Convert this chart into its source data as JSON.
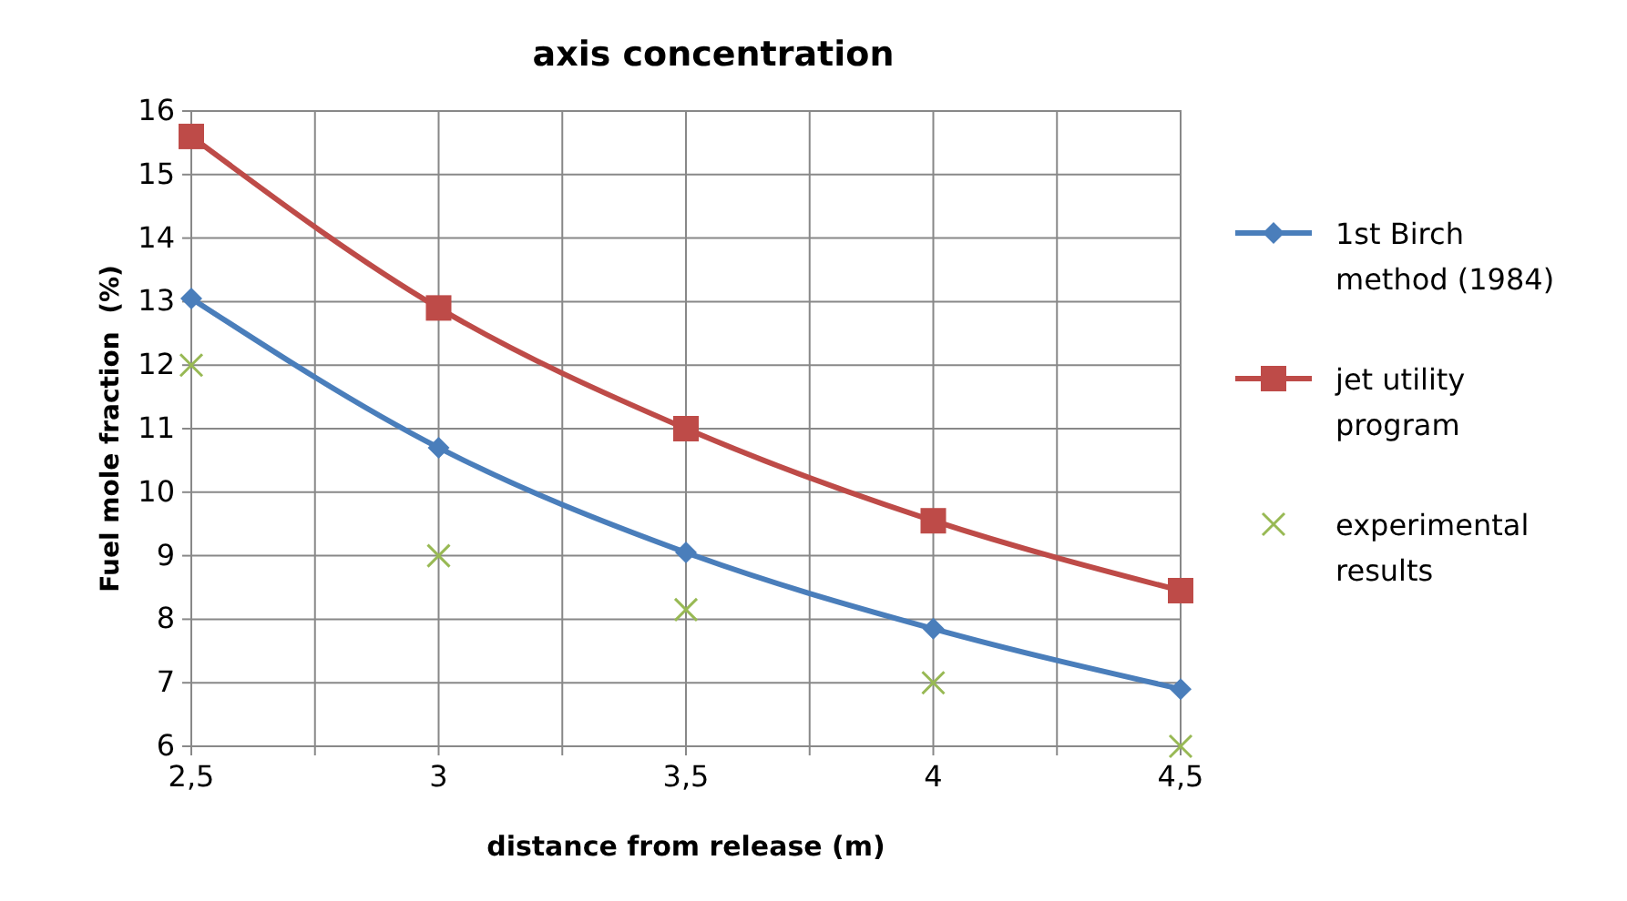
{
  "chart_data": {
    "type": "line",
    "title": "axis concentration",
    "xlabel": "distance from release (m)",
    "ylabel": "Fuel mole fraction  (%)",
    "x": [
      2.5,
      3,
      3.5,
      4,
      4.5
    ],
    "xlim": [
      2.5,
      4.5
    ],
    "xticks": [
      {
        "value": 2.5,
        "label": "2,5"
      },
      {
        "value": 2.75,
        "label": null
      },
      {
        "value": 3,
        "label": "3"
      },
      {
        "value": 3.25,
        "label": null
      },
      {
        "value": 3.5,
        "label": "3,5"
      },
      {
        "value": 3.75,
        "label": null
      },
      {
        "value": 4,
        "label": "4"
      },
      {
        "value": 4.25,
        "label": null
      },
      {
        "value": 4.5,
        "label": "4,5"
      }
    ],
    "ylim": [
      6,
      16
    ],
    "yticks": [
      6,
      7,
      8,
      9,
      10,
      11,
      12,
      13,
      14,
      15,
      16
    ],
    "grid": true,
    "legend": "right",
    "series": [
      {
        "name": "1st Birch method (1984)",
        "color": "#4a7ebb",
        "marker": "diamond",
        "values": [
          13.05,
          10.7,
          9.05,
          7.85,
          6.9
        ]
      },
      {
        "name": "jet utility program",
        "color": "#be4b48",
        "marker": "square",
        "values": [
          15.6,
          12.9,
          11.0,
          9.55,
          8.45
        ]
      },
      {
        "name": "experimental results",
        "type": "scatter",
        "color": "#98b954",
        "marker": "cross",
        "values": [
          12.0,
          9.0,
          8.15,
          7.0,
          6.0
        ]
      }
    ]
  }
}
